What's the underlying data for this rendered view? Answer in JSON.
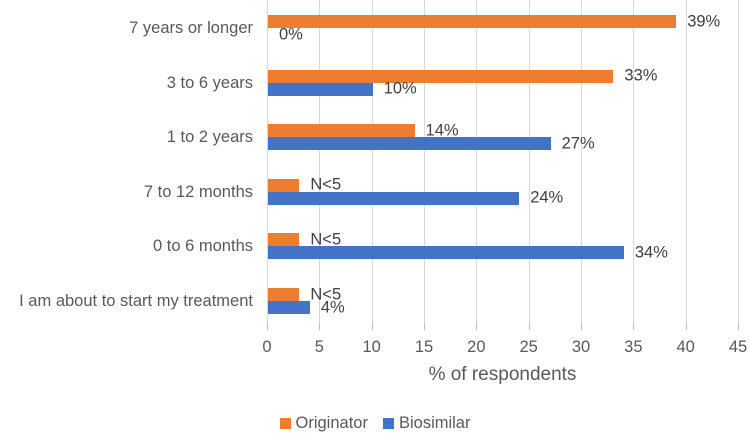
{
  "figure": {
    "background": "#FFFFFF"
  },
  "chart_data": {
    "type": "bar",
    "orientation": "horizontal",
    "title": "",
    "xlabel": "% of respondents",
    "ylabel": "",
    "xlim": [
      0,
      45
    ],
    "xticks": [
      0,
      5,
      10,
      15,
      20,
      25,
      30,
      35,
      40,
      45
    ],
    "grid": true,
    "legend_position": "bottom",
    "categories": [
      "7 years or longer",
      "3 to 6 years",
      "1 to 2 years",
      "7 to 12 months",
      "0 to 6 months",
      "I am about to start my treatment"
    ],
    "series": [
      {
        "name": "Originator",
        "color": "#ED7D31",
        "values": [
          39,
          33,
          14,
          3,
          3,
          3
        ],
        "labels": [
          "39%",
          "33%",
          "14%",
          "N<5",
          "N<5",
          "N<5"
        ]
      },
      {
        "name": "Biosimilar",
        "color": "#4472C4",
        "values": [
          0,
          10,
          27,
          24,
          34,
          4
        ],
        "labels": [
          "0%",
          "10%",
          "27%",
          "24%",
          "34%",
          "4%"
        ]
      }
    ],
    "colors": {
      "gridline": "#D9D9D9",
      "tick_mark": "#BFBFBF",
      "axis_text": "#595959",
      "value_label_text": "#404040"
    }
  }
}
